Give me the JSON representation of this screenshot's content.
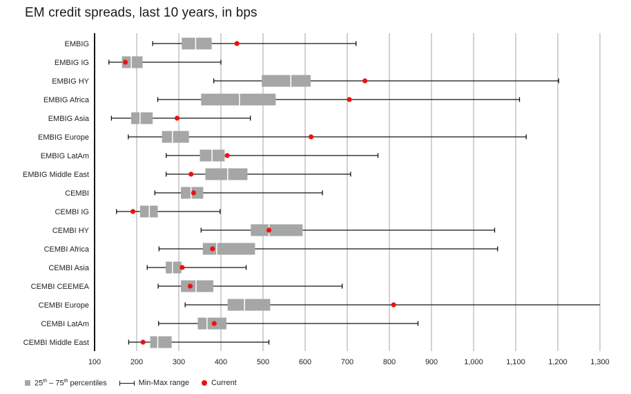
{
  "chart_data": {
    "type": "boxplot-range",
    "title": "EM credit spreads, last 10 years, in bps",
    "xlabel": "",
    "ylabel": "",
    "xlim": [
      100,
      1300
    ],
    "x_ticks": [
      100,
      200,
      300,
      400,
      500,
      600,
      700,
      800,
      900,
      1000,
      1100,
      1200,
      1300
    ],
    "x_tick_labels": [
      "100",
      "200",
      "300",
      "400",
      "500",
      "600",
      "700",
      "800",
      "900",
      "1,000",
      "1,100",
      "1,200",
      "1,300"
    ],
    "grid": "vertical",
    "legend_position": "bottom-left",
    "legend": [
      {
        "key": "box",
        "label_pre": "25",
        "sup1": "th",
        "mid": " – 75",
        "sup2": "th",
        "label_post": " percentiles"
      },
      {
        "key": "range",
        "label": "Min-Max range"
      },
      {
        "key": "current",
        "label": "Current"
      }
    ],
    "colors": {
      "box": "#a5a7a6",
      "range": "#111111",
      "current": "#ee1111",
      "grid": "#b5b5b5"
    },
    "series": [
      {
        "name": "EMBIG",
        "min": 238,
        "q1": 307,
        "median": 340,
        "q3": 378,
        "max": 721,
        "current": 438
      },
      {
        "name": "EMBIG IG",
        "min": 134,
        "q1": 165,
        "median": 187,
        "q3": 214,
        "max": 400,
        "current": 173
      },
      {
        "name": "EMBIG HY",
        "min": 383,
        "q1": 497,
        "median": 566,
        "q3": 613,
        "max": 1202,
        "current": 742
      },
      {
        "name": "EMBIG Africa",
        "min": 250,
        "q1": 353,
        "median": 444,
        "q3": 530,
        "max": 1109,
        "current": 705
      },
      {
        "name": "EMBIG Asia",
        "min": 140,
        "q1": 187,
        "median": 208,
        "q3": 238,
        "max": 470,
        "current": 296
      },
      {
        "name": "EMBIG Europe",
        "min": 180,
        "q1": 260,
        "median": 285,
        "q3": 324,
        "max": 1125,
        "current": 614
      },
      {
        "name": "EMBIG LatAm",
        "min": 270,
        "q1": 350,
        "median": 379,
        "q3": 409,
        "max": 773,
        "current": 415
      },
      {
        "name": "EMBIG Middle East",
        "min": 270,
        "q1": 363,
        "median": 416,
        "q3": 463,
        "max": 708,
        "current": 329
      },
      {
        "name": "CEMBI",
        "min": 243,
        "q1": 305,
        "median": 329,
        "q3": 358,
        "max": 641,
        "current": 335
      },
      {
        "name": "CEMBI IG",
        "min": 152,
        "q1": 208,
        "median": 230,
        "q3": 250,
        "max": 398,
        "current": 191
      },
      {
        "name": "CEMBI HY",
        "min": 353,
        "q1": 471,
        "median": 514,
        "q3": 594,
        "max": 1050,
        "current": 514
      },
      {
        "name": "CEMBI Africa",
        "min": 253,
        "q1": 357,
        "median": 390,
        "q3": 481,
        "max": 1057,
        "current": 380
      },
      {
        "name": "CEMBI Asia",
        "min": 225,
        "q1": 269,
        "median": 285,
        "q3": 306,
        "max": 460,
        "current": 308
      },
      {
        "name": "CEMBI CEEMEA",
        "min": 251,
        "q1": 305,
        "median": 341,
        "q3": 382,
        "max": 688,
        "current": 327
      },
      {
        "name": "CEMBI Europe",
        "min": 315,
        "q1": 416,
        "median": 456,
        "q3": 517,
        "max": 1300,
        "current": 810
      },
      {
        "name": "CEMBI LatAm",
        "min": 252,
        "q1": 345,
        "median": 367,
        "q3": 413,
        "max": 868,
        "current": 384
      },
      {
        "name": "CEMBI Middle East",
        "min": 181,
        "q1": 232,
        "median": 250,
        "q3": 283,
        "max": 514,
        "current": 215
      }
    ]
  }
}
